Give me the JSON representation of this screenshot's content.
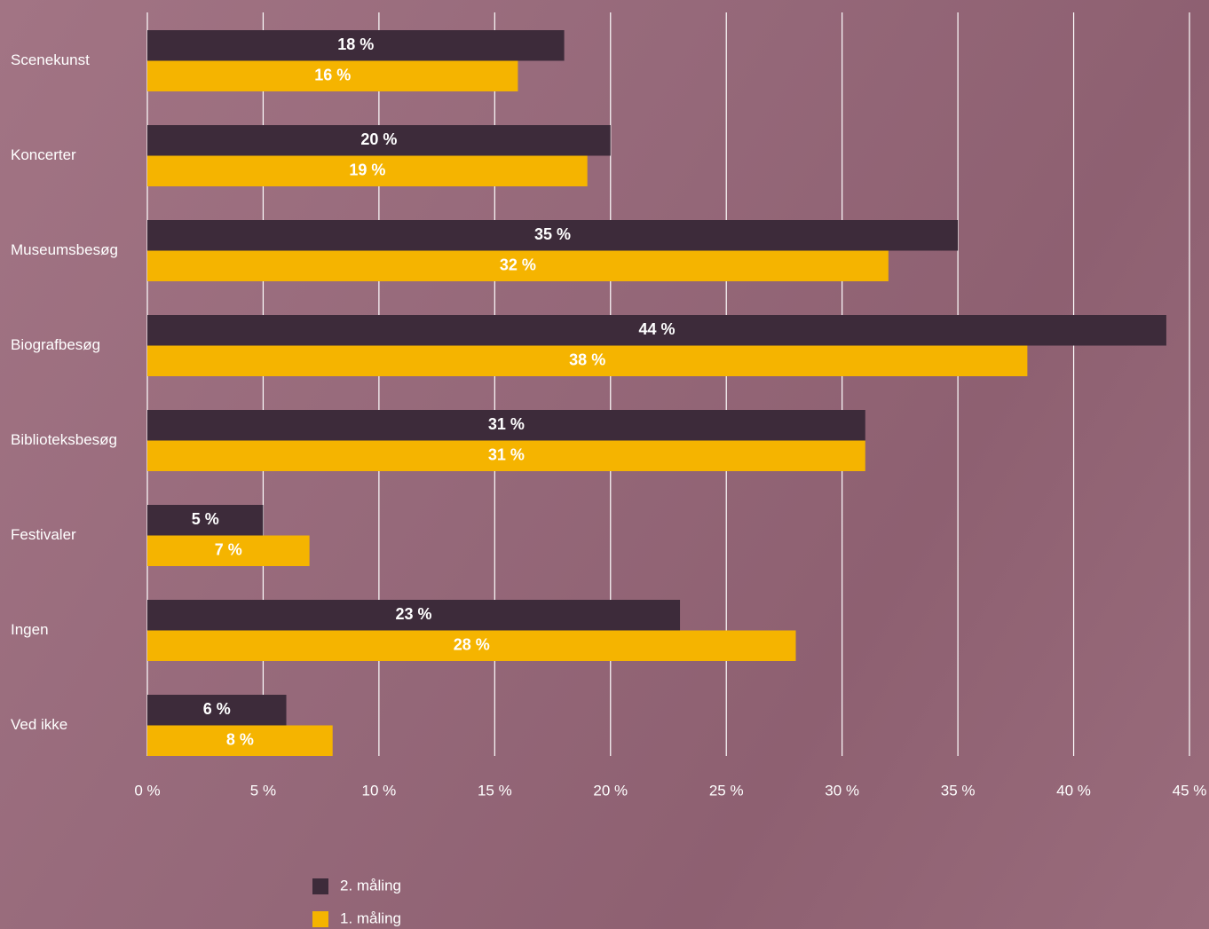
{
  "chart_data": {
    "type": "hbar",
    "categories": [
      "Scenekunst",
      "Koncerter",
      "Museumsbesøg",
      "Biografbesøg",
      "Biblioteksbesøg",
      "Festivaler",
      "Ingen",
      "Ved ikke"
    ],
    "series": [
      {
        "name": "2. måling",
        "color": "#3d2b3a",
        "values": [
          18,
          20,
          35,
          44,
          31,
          5,
          23,
          6
        ],
        "value_labels": [
          "18 %",
          "20 %",
          "35 %",
          "44 %",
          "31 %",
          "5 %",
          "23 %",
          "6 %"
        ]
      },
      {
        "name": "1. måling",
        "color": "#f5b400",
        "values": [
          16,
          19,
          32,
          38,
          31,
          7,
          28,
          8
        ],
        "value_labels": [
          "16 %",
          "19 %",
          "32 %",
          "38 %",
          "31 %",
          "7 %",
          "28 %",
          "8 %"
        ]
      }
    ],
    "xlim": [
      0,
      45
    ],
    "xticks": [
      {
        "value": 0,
        "label": "0 %"
      },
      {
        "value": 5,
        "label": "5 %"
      },
      {
        "value": 10,
        "label": "10 %"
      },
      {
        "value": 15,
        "label": "15 %"
      },
      {
        "value": 20,
        "label": "20 %"
      },
      {
        "value": 25,
        "label": "25 %"
      },
      {
        "value": 30,
        "label": "30 %"
      },
      {
        "value": 35,
        "label": "35 %"
      },
      {
        "value": 40,
        "label": "40 %"
      },
      {
        "value": 45,
        "label": "45 %"
      }
    ],
    "grid": true,
    "legend": "bottom"
  }
}
